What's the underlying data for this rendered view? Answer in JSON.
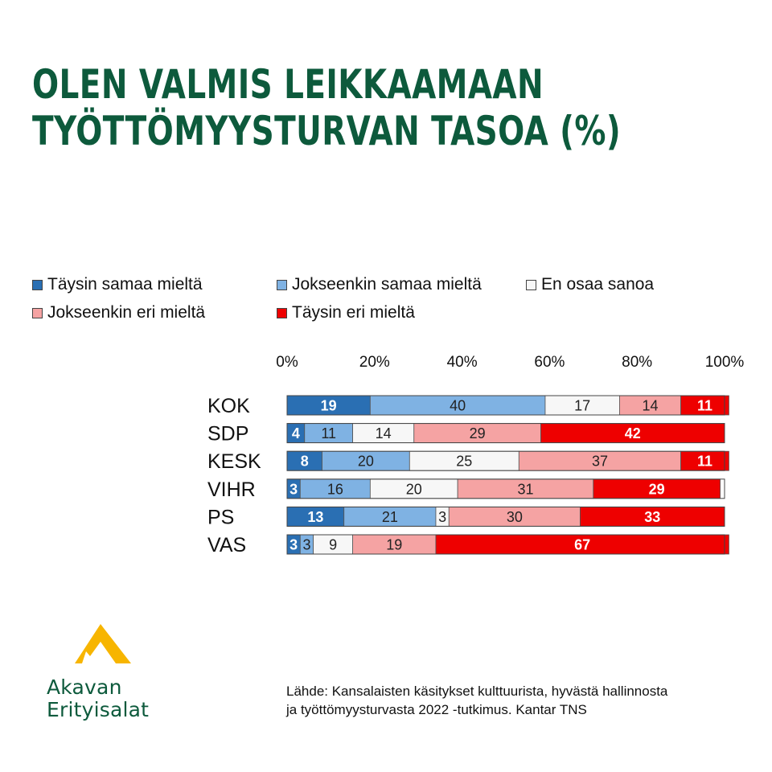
{
  "title_lines": [
    "OLEN VALMIS LEIKKAAMAAN",
    "TYÖTTÖMYYSTURVAN TASOA (%)"
  ],
  "chart_data": {
    "type": "bar",
    "orientation": "horizontal",
    "stacked": true,
    "categories": [
      "KOK",
      "SDP",
      "KESK",
      "VIHR",
      "PS",
      "VAS"
    ],
    "series": [
      {
        "name": "Täysin samaa mieltä",
        "color": "#2a6fb3",
        "label_color": "#ffffff",
        "values": [
          19,
          4,
          8,
          3,
          13,
          3
        ]
      },
      {
        "name": "Jokseenkin samaa mieltä",
        "color": "#7fb2e3",
        "label_color": "#222222",
        "values": [
          40,
          11,
          20,
          16,
          21,
          3
        ]
      },
      {
        "name": "En osaa sanoa",
        "color": "#f7f7f7",
        "label_color": "#222222",
        "values": [
          17,
          14,
          25,
          20,
          3,
          9
        ]
      },
      {
        "name": "Jokseenkin eri mieltä",
        "color": "#f5a3a3",
        "label_color": "#222222",
        "values": [
          14,
          29,
          37,
          31,
          30,
          19
        ]
      },
      {
        "name": "Täysin eri mieltä",
        "color": "#ee0000",
        "label_color": "#ffffff",
        "values": [
          11,
          42,
          11,
          29,
          33,
          67
        ]
      }
    ],
    "xlim": [
      0,
      100
    ],
    "x_ticks": [
      "0%",
      "20%",
      "40%",
      "60%",
      "80%",
      "100%"
    ],
    "x_axis_position": "top",
    "legend_position": "top",
    "grid": false
  },
  "source_lines": [
    "Lähde: Kansalaisten käsitykset kulttuurista, hyvästä hallinnosta",
    "ja työttömyysturvasta 2022 -tutkimus. Kantar TNS"
  ],
  "logo": {
    "line1": "Akavan",
    "line2": "Erityisalat",
    "mark_color": "#f7b500",
    "text_color": "#0d5a3c"
  }
}
